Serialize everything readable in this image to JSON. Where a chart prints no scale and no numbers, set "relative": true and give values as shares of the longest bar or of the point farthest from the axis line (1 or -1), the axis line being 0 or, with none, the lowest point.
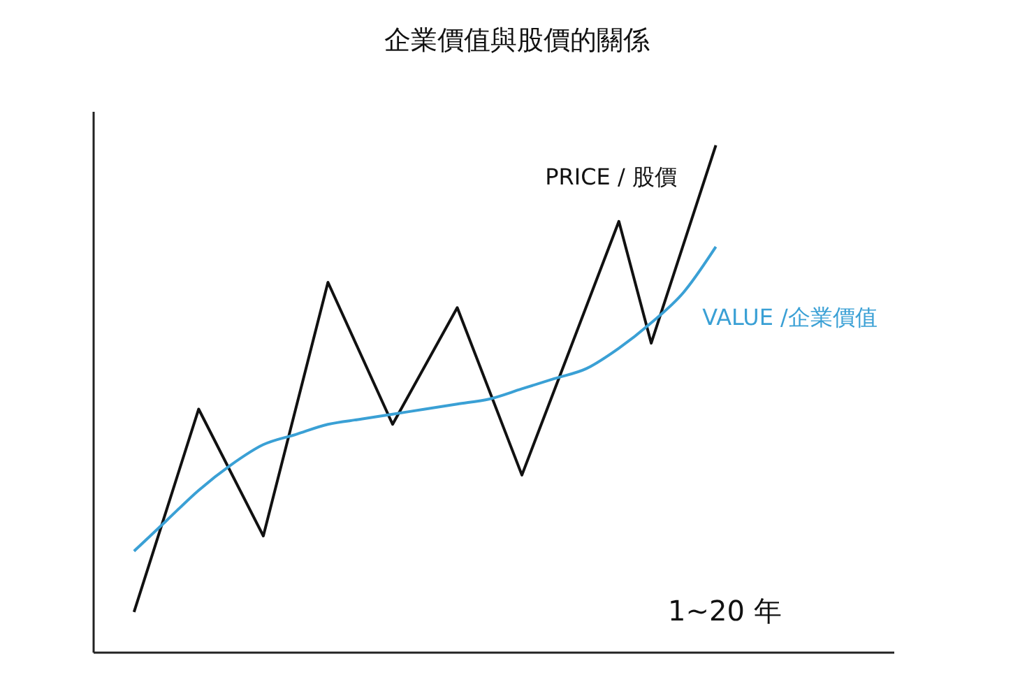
{
  "chart_data": {
    "type": "line",
    "title": "企業價值與股價的關係",
    "xlabel": "1~20 年",
    "relative": true,
    "marker": "none",
    "line_style": "solid",
    "categories": [
      null,
      null,
      null,
      null,
      null,
      null,
      null,
      null,
      null,
      null,
      null,
      null,
      null,
      null,
      null,
      null,
      null,
      null,
      null
    ],
    "series": [
      {
        "name": "PRICE / 股價",
        "color": "#111111",
        "values": [
          0.08,
          null,
          0.48,
          null,
          0.23,
          null,
          0.73,
          null,
          0.45,
          null,
          0.68,
          null,
          0.35,
          null,
          null,
          0.85,
          0.61,
          null,
          1
        ]
      },
      {
        "name": "VALUE /企業價值",
        "color": "#3aa0d5",
        "values": [
          0.2,
          0.26,
          0.32,
          0.37,
          0.41,
          0.43,
          0.45,
          0.46,
          0.47,
          0.48,
          0.49,
          0.5,
          0.52,
          0.54,
          0.56,
          0.6,
          0.65,
          0.71,
          0.8
        ]
      }
    ]
  }
}
